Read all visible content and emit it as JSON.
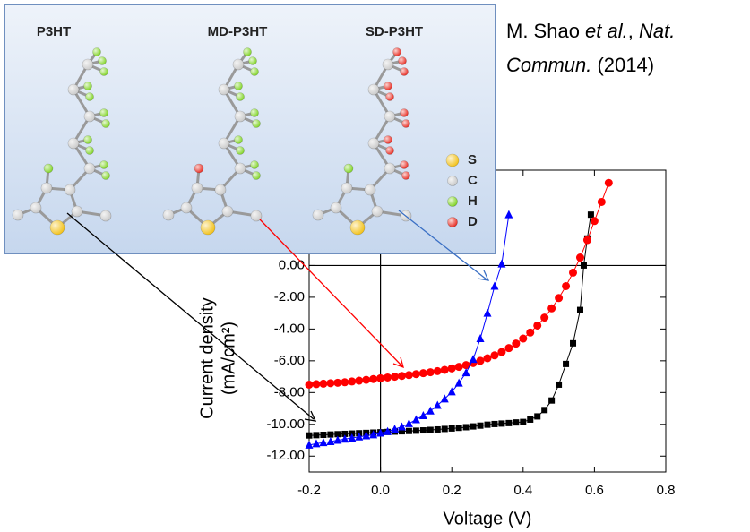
{
  "chart_data": {
    "type": "line",
    "xlabel": "Voltage (V)",
    "ylabel": [
      "Current density",
      "(mA/cm²)"
    ],
    "xlim": [
      -0.2,
      0.8
    ],
    "ylim": [
      -13,
      6
    ],
    "xticks": [
      -0.2,
      {
        "value": 0,
        "label": "0.0"
      },
      0.2,
      0.4,
      0.6,
      0.8
    ],
    "yticks": [
      {
        "value": 0,
        "label": "0.00"
      },
      {
        "value": -2,
        "label": "-2.00"
      },
      {
        "value": -4,
        "label": "-4.00"
      },
      {
        "value": -6,
        "label": "-6.00"
      },
      {
        "value": -8,
        "label": "-8.00"
      },
      {
        "value": -10,
        "label": "-10.00"
      },
      {
        "value": -12,
        "label": "-12.00"
      }
    ],
    "series": [
      {
        "name": "P3HT",
        "color": "#000000",
        "marker": "square",
        "x": [
          -0.2,
          -0.18,
          -0.16,
          -0.14,
          -0.12,
          -0.1,
          -0.08,
          -0.06,
          -0.04,
          -0.02,
          0,
          0.02,
          0.04,
          0.06,
          0.08,
          0.1,
          0.12,
          0.14,
          0.16,
          0.18,
          0.2,
          0.22,
          0.24,
          0.26,
          0.28,
          0.3,
          0.32,
          0.34,
          0.36,
          0.38,
          0.4,
          0.42,
          0.44,
          0.46,
          0.48,
          0.5,
          0.52,
          0.54,
          0.56,
          0.57,
          0.58,
          0.59
        ],
        "values": [
          -10.7,
          -10.68,
          -10.66,
          -10.64,
          -10.62,
          -10.6,
          -10.58,
          -10.56,
          -10.54,
          -10.52,
          -10.5,
          -10.48,
          -10.46,
          -10.44,
          -10.42,
          -10.4,
          -10.38,
          -10.35,
          -10.32,
          -10.29,
          -10.26,
          -10.22,
          -10.18,
          -10.13,
          -10.08,
          -10.02,
          -9.98,
          -9.95,
          -9.92,
          -9.88,
          -9.85,
          -9.7,
          -9.5,
          -9.1,
          -8.5,
          -7.5,
          -6.2,
          -4.9,
          -2.8,
          0,
          1.7,
          3.2
        ]
      },
      {
        "name": "MD-P3HT",
        "color": "#ff0000",
        "marker": "circle",
        "x": [
          -0.2,
          -0.18,
          -0.16,
          -0.14,
          -0.12,
          -0.1,
          -0.08,
          -0.06,
          -0.04,
          -0.02,
          0,
          0.02,
          0.04,
          0.06,
          0.08,
          0.1,
          0.12,
          0.14,
          0.16,
          0.18,
          0.2,
          0.22,
          0.24,
          0.26,
          0.28,
          0.3,
          0.32,
          0.34,
          0.36,
          0.38,
          0.4,
          0.42,
          0.44,
          0.46,
          0.48,
          0.5,
          0.52,
          0.54,
          0.56,
          0.58,
          0.6,
          0.62,
          0.64
        ],
        "values": [
          -7.5,
          -7.47,
          -7.44,
          -7.41,
          -7.38,
          -7.35,
          -7.3,
          -7.25,
          -7.2,
          -7.15,
          -7.1,
          -7.05,
          -7.0,
          -6.95,
          -6.9,
          -6.84,
          -6.78,
          -6.72,
          -6.65,
          -6.57,
          -6.48,
          -6.38,
          -6.27,
          -6.14,
          -6.0,
          -5.84,
          -5.66,
          -5.45,
          -5.2,
          -4.92,
          -4.6,
          -4.22,
          -3.78,
          -3.28,
          -2.7,
          -2.05,
          -1.3,
          -0.45,
          0.5,
          1.6,
          2.8,
          4.0,
          5.2
        ]
      },
      {
        "name": "SD-P3HT",
        "color": "#0000ff",
        "marker": "triangle",
        "x": [
          -0.2,
          -0.18,
          -0.16,
          -0.14,
          -0.12,
          -0.1,
          -0.08,
          -0.06,
          -0.04,
          -0.02,
          0,
          0.02,
          0.04,
          0.06,
          0.08,
          0.1,
          0.12,
          0.14,
          0.16,
          0.18,
          0.2,
          0.22,
          0.24,
          0.26,
          0.28,
          0.3,
          0.32,
          0.34,
          0.36
        ],
        "values": [
          -11.3,
          -11.22,
          -11.15,
          -11.08,
          -11.0,
          -10.93,
          -10.86,
          -10.79,
          -10.72,
          -10.65,
          -10.55,
          -10.45,
          -10.3,
          -10.15,
          -9.95,
          -9.7,
          -9.45,
          -9.15,
          -8.8,
          -8.4,
          -7.95,
          -7.4,
          -6.75,
          -5.9,
          -4.6,
          -3.0,
          -1.3,
          0.1,
          3.2
        ]
      }
    ],
    "atom_legend": [
      {
        "label": "S",
        "color": "#f2c014"
      },
      {
        "label": "C",
        "color": "#c8c8c8"
      },
      {
        "label": "H",
        "color": "#7ed321"
      },
      {
        "label": "D",
        "color": "#e8281e"
      }
    ],
    "citation": [
      [
        {
          "text": "M. Shao ",
          "italic": false
        },
        {
          "text": "et al.",
          "italic": true
        },
        {
          "text": ", ",
          "italic": false
        },
        {
          "text": "Nat.",
          "italic": true
        }
      ],
      [
        {
          "text": "Commun.",
          "italic": true
        },
        {
          "text": " (2014)",
          "italic": false
        }
      ]
    ]
  }
}
